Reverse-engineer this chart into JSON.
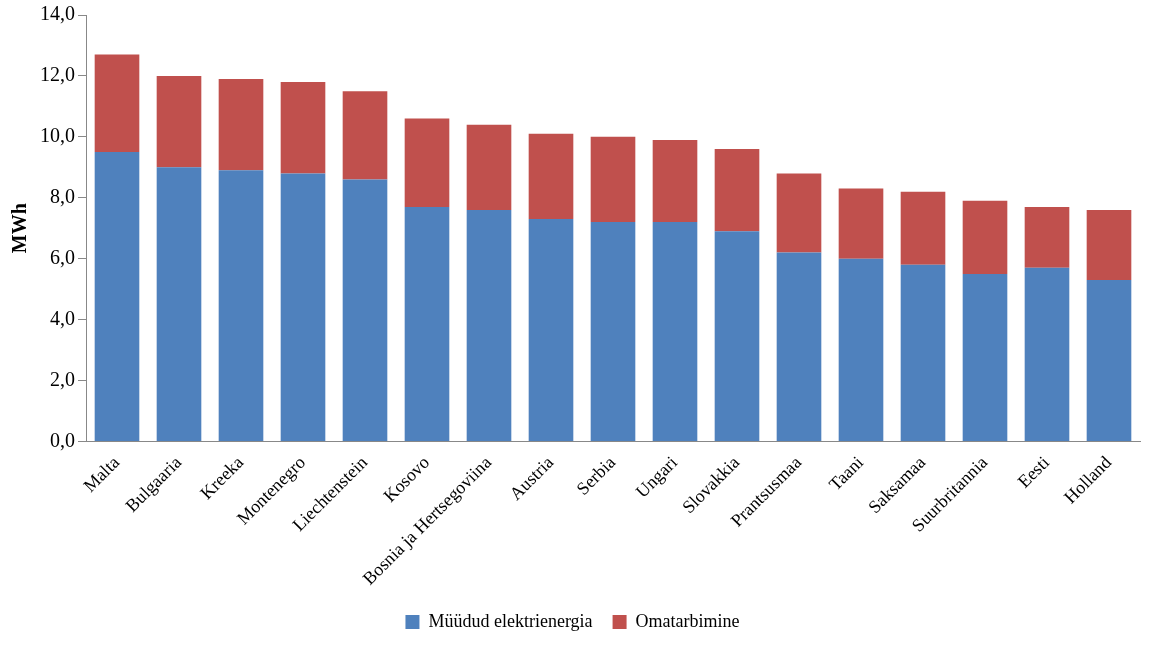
{
  "chart_data": {
    "type": "bar",
    "stacked": true,
    "ylabel": "MWh",
    "categories": [
      "Malta",
      "Bulgaaria",
      "Kreeka",
      "Montenegro",
      "Liechtenstein",
      "Kosovo",
      "Bosnia ja Hertsegoviina",
      "Austria",
      "Serbia",
      "Ungari",
      "Slovakkia",
      "Prantsusmaa",
      "Taani",
      "Saksamaa",
      "Suurbritannia",
      "Eesti",
      "Holland"
    ],
    "series": [
      {
        "name": "Müüdud elektrienergia",
        "color": "#4f81bd",
        "values": [
          9.5,
          9.0,
          8.9,
          8.8,
          8.6,
          7.7,
          7.6,
          7.3,
          7.2,
          7.2,
          6.9,
          6.2,
          6.0,
          5.8,
          5.5,
          5.7,
          5.3
        ]
      },
      {
        "name": "Omatarbimine",
        "color": "#c0504d",
        "values": [
          3.2,
          3.0,
          3.0,
          3.0,
          2.9,
          2.9,
          2.8,
          2.8,
          2.8,
          2.7,
          2.7,
          2.6,
          2.3,
          2.4,
          2.4,
          2.0,
          2.3
        ]
      }
    ],
    "ylim": [
      0,
      14
    ],
    "yticks": [
      {
        "value": 0,
        "label": "0,0"
      },
      {
        "value": 2,
        "label": "2,0"
      },
      {
        "value": 4,
        "label": "4,0"
      },
      {
        "value": 6,
        "label": "6,0"
      },
      {
        "value": 8,
        "label": "8,0"
      },
      {
        "value": 10,
        "label": "10,0"
      },
      {
        "value": 12,
        "label": "12,0"
      },
      {
        "value": 14,
        "label": "14,0"
      }
    ],
    "grid": false,
    "legend": "bottom"
  }
}
